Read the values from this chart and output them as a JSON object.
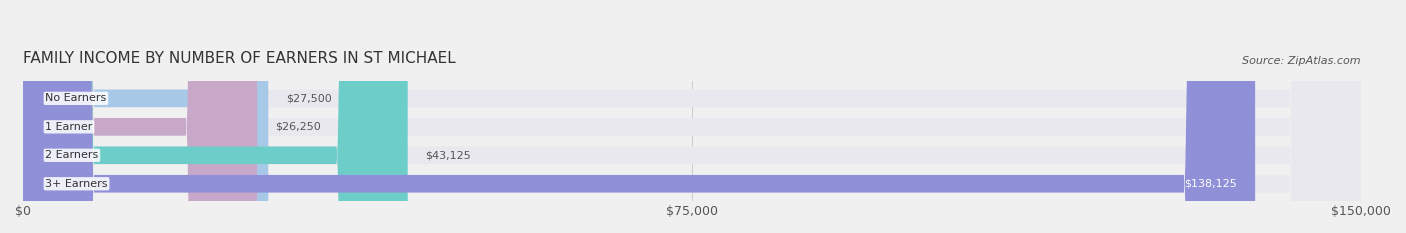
{
  "title": "FAMILY INCOME BY NUMBER OF EARNERS IN ST MICHAEL",
  "source": "Source: ZipAtlas.com",
  "categories": [
    "No Earners",
    "1 Earner",
    "2 Earners",
    "3+ Earners"
  ],
  "values": [
    27500,
    26250,
    43125,
    138125
  ],
  "bar_colors": [
    "#a8c8e8",
    "#c8a8c8",
    "#6dcdc8",
    "#9090d8"
  ],
  "bar_labels": [
    "$27,500",
    "$26,250",
    "$43,125",
    "$138,125"
  ],
  "x_max": 150000,
  "x_ticks": [
    0,
    75000,
    150000
  ],
  "x_tick_labels": [
    "$0",
    "$75,000",
    "$150,000"
  ],
  "background_color": "#f0f0f0",
  "bar_bg_color": "#e8e8ee",
  "label_bg_color": "#ffffff",
  "title_fontsize": 11,
  "tick_fontsize": 9,
  "bar_label_fontsize": 8,
  "cat_label_fontsize": 8
}
